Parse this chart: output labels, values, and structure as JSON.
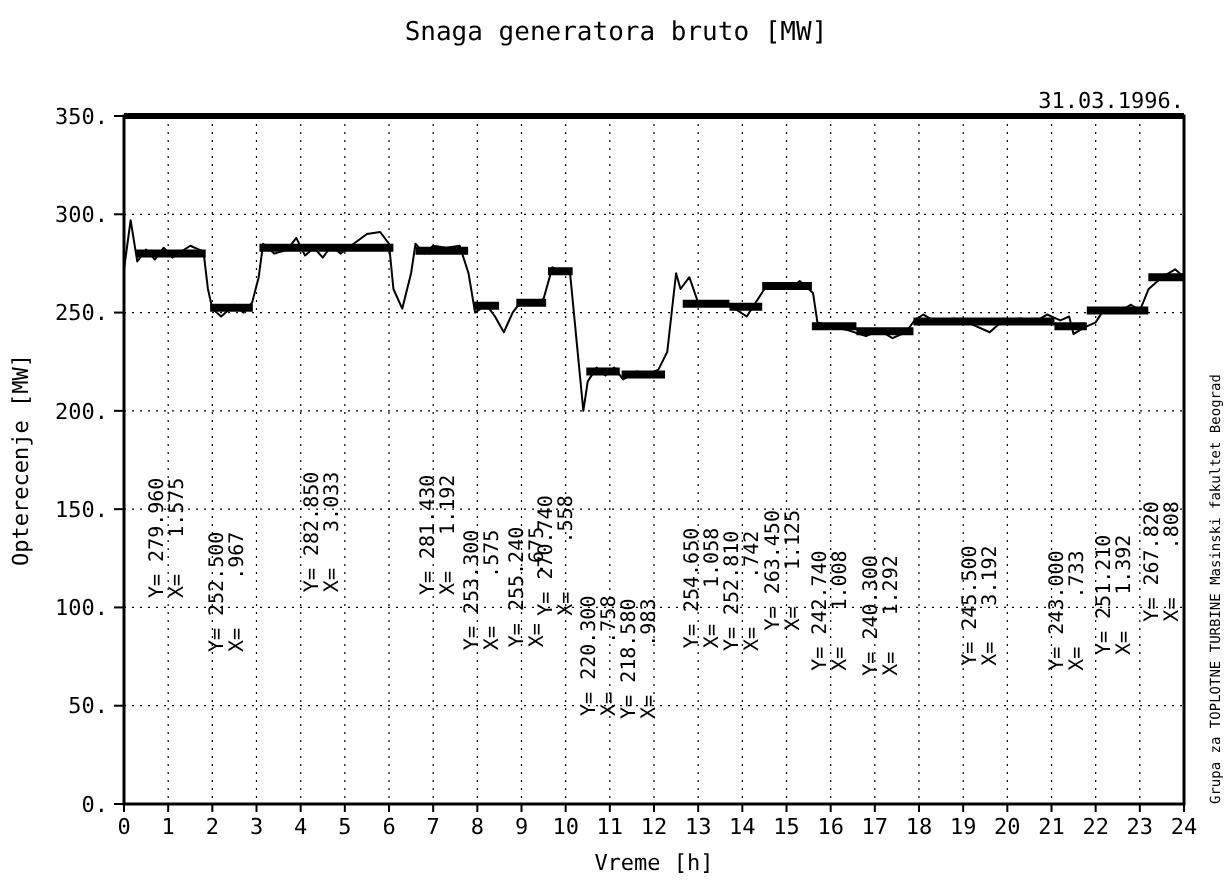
{
  "chart_data": {
    "type": "line",
    "title": "Snaga generatora bruto [MW]",
    "xlabel": "Vreme [h]",
    "ylabel": "Opterecenje [MW]",
    "xlim": [
      0,
      24
    ],
    "xticks": [
      0,
      1,
      2,
      3,
      4,
      5,
      6,
      7,
      8,
      9,
      10,
      11,
      12,
      13,
      14,
      15,
      16,
      17,
      18,
      19,
      20,
      21,
      22,
      23,
      24
    ],
    "ylim": [
      0,
      350
    ],
    "yticks": [
      {
        "value": 0,
        "label": "0."
      },
      {
        "value": 50,
        "label": "50."
      },
      {
        "value": 100,
        "label": "100."
      },
      {
        "value": 150,
        "label": "150."
      },
      {
        "value": 200,
        "label": "200."
      },
      {
        "value": 250,
        "label": "250."
      },
      {
        "value": 300,
        "label": "300."
      },
      {
        "value": 350,
        "label": "350."
      }
    ],
    "grid": true,
    "series": [
      {
        "color": "#000000",
        "x": [
          0,
          0.15,
          0.3,
          0.5,
          0.7,
          0.9,
          1.1,
          1.3,
          1.5,
          1.8,
          1.9,
          2.0,
          2.2,
          2.5,
          2.7,
          2.9,
          3.05,
          3.15,
          3.4,
          3.7,
          3.9,
          4.1,
          4.3,
          4.5,
          4.7,
          4.9,
          5.2,
          5.5,
          5.8,
          6.0,
          6.1,
          6.3,
          6.5,
          6.6,
          6.8,
          7.0,
          7.3,
          7.6,
          7.8,
          7.95,
          8.2,
          8.4,
          8.6,
          8.8,
          9.0,
          9.3,
          9.5,
          9.7,
          9.9,
          10.1,
          10.25,
          10.4,
          10.5,
          10.7,
          10.9,
          11.1,
          11.3,
          11.6,
          11.9,
          12.1,
          12.3,
          12.5,
          12.6,
          12.8,
          13.0,
          13.3,
          13.6,
          13.9,
          14.1,
          14.3,
          14.5,
          14.8,
          15.1,
          15.3,
          15.6,
          15.7,
          16.0,
          16.4,
          16.8,
          17.1,
          17.4,
          17.7,
          17.9,
          18.1,
          18.4,
          18.8,
          19.2,
          19.6,
          19.9,
          20.3,
          20.6,
          20.9,
          21.2,
          21.4,
          21.5,
          21.7,
          22.0,
          22.2,
          22.5,
          22.8,
          23.0,
          23.2,
          23.5,
          23.8,
          24
        ],
        "values": [
          272,
          297,
          276,
          282,
          277,
          283,
          278,
          281,
          284,
          281,
          262,
          252,
          248,
          254,
          250,
          255,
          268,
          285,
          280,
          282,
          288,
          279,
          283,
          278,
          284,
          280,
          285,
          290,
          291,
          285,
          262,
          252,
          270,
          285,
          280,
          284,
          283,
          284,
          270,
          250,
          254,
          248,
          240,
          250,
          256,
          254,
          257,
          273,
          271,
          270,
          235,
          200,
          215,
          222,
          218,
          222,
          216,
          220,
          219,
          221,
          230,
          270,
          262,
          268,
          255,
          254,
          255,
          251,
          248,
          255,
          262,
          265,
          262,
          266,
          260,
          245,
          243,
          241,
          238,
          241,
          237,
          240,
          246,
          249,
          245,
          247,
          244,
          240,
          246,
          247,
          245,
          249,
          246,
          248,
          239,
          242,
          245,
          252,
          250,
          254,
          251,
          262,
          268,
          272,
          268
        ]
      },
      {
        "type": "step",
        "color": "#000000",
        "x": [
          0.275,
          1.85,
          null,
          1.95,
          2.917,
          null,
          3.067,
          6.1,
          null,
          6.6,
          7.792,
          null,
          7.917,
          8.492,
          null,
          8.883,
          9.558,
          null,
          9.6,
          10.158,
          null,
          10.467,
          11.225,
          null,
          11.267,
          12.25,
          null,
          12.65,
          13.708,
          null,
          13.708,
          14.45,
          null,
          14.45,
          15.575,
          null,
          15.575,
          16.583,
          null,
          16.583,
          17.875,
          null,
          17.875,
          21.067,
          null,
          21.067,
          21.8,
          null,
          21.8,
          23.192,
          null,
          23.192,
          24
        ],
        "values": [
          280,
          280,
          null,
          252.5,
          252.5,
          null,
          283,
          283,
          null,
          281.5,
          281.5,
          null,
          253.5,
          253.5,
          null,
          255,
          255,
          null,
          271,
          271,
          null,
          220,
          220,
          null,
          218.5,
          218.5,
          null,
          254.5,
          254.5,
          null,
          253,
          253,
          null,
          263.5,
          263.5,
          null,
          243,
          243,
          null,
          240.5,
          240.5,
          null,
          245.5,
          245.5,
          null,
          243,
          243,
          null,
          251,
          251,
          null,
          268,
          268
        ]
      }
    ],
    "annotations": [
      "Y= 279.960\nX=   1.575",
      "Y= 252.500\nX=    .967",
      "Y= 282.850\nX=   3.033",
      "Y= 281.430\nX=   1.192",
      "Y= 253.300\nX=    .575",
      "Y= 255.240\nX=    .675",
      "Y= 270.740\nX=    .558",
      "Y= 220.300\nX=    .758",
      "Y= 218.580\nX=    .983",
      "Y= 254.650\nX=   1.058",
      "Y= 252.810\nX=    .742",
      "Y= 263.450\nX=   1.125",
      "Y= 242.740\nX=   1.008",
      "Y= 240.300\nX=   1.292",
      "Y= 245.500\nX=   3.192",
      "Y= 243.000\nX=    .733",
      "Y= 251.210\nX=   1.392",
      "Y= 267.820\nX=    .808",
      "31.03.1996.",
      "Grupa za TOPLOTNE TURBINE Masinski fakultet Beograd"
    ]
  }
}
